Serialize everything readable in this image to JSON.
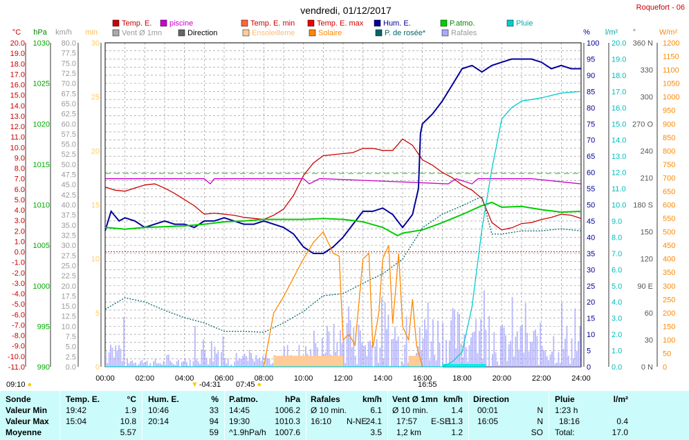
{
  "title": "vendredi, 01/12/2017",
  "station": "Roquefort - 06",
  "legend": [
    {
      "label": "Temp. E.",
      "color": "#cc0000"
    },
    {
      "label": "piscine",
      "color": "#cc00cc"
    },
    {
      "label": "Temp. E. min",
      "color": "#ff6633"
    },
    {
      "label": "Temp. E. max",
      "color": "#ee0000"
    },
    {
      "label": "Hum. E.",
      "color": "#000099"
    },
    {
      "label": "P.atmo.",
      "color": "#00cc00"
    },
    {
      "label": "Pluie",
      "color": "#00cccc"
    },
    {
      "label": "Vent Ø 1mn",
      "color": "#aaaaaa"
    },
    {
      "label": "Direction",
      "color": "#666666"
    },
    {
      "label": "Ensoleilleme",
      "color": "#ffcc99"
    },
    {
      "label": "Solaire",
      "color": "#ff8800"
    },
    {
      "label": "P. de rosée*",
      "color": "#006666"
    },
    {
      "label": "Rafales",
      "color": "#aaaaff"
    }
  ],
  "axes_units": {
    "temp": "°C",
    "hpa": "hPa",
    "wind": "km/h",
    "min": "min",
    "hum": "%",
    "rain": "l/m²",
    "dir": "°",
    "solar": "W/m²"
  },
  "times": [
    "00:00",
    "02:00",
    "04:00",
    "06:00",
    "08:00",
    "10:00",
    "12:00",
    "14:00",
    "16:00",
    "18:00",
    "20:00",
    "22:00",
    "24:00"
  ],
  "sun_marks": {
    "sunrise_label": "07:45",
    "sunset_label": "16:55",
    "moonrise": "09:10",
    "moonset": "-04:31"
  },
  "summary": {
    "labels": {
      "sonde": "Sonde",
      "min": "Valeur Min",
      "max": "Valeur Max",
      "avg": "Moyenne"
    },
    "temp": {
      "h": "Temp. E.",
      "u": "°C",
      "min_t": "19:42",
      "min_v": "1.9",
      "max_t": "15:04",
      "max_v": "10.8",
      "avg": "5.57"
    },
    "hum": {
      "h": "Hum. E.",
      "u": "%",
      "min_t": "10:46",
      "min_v": "33",
      "max_t": "20:14",
      "max_v": "94",
      "avg": "59"
    },
    "patm": {
      "h": "P.atmo.",
      "u": "hPa",
      "min_t": "14:45",
      "min_v": "1006.2",
      "max_t": "19:30",
      "max_v": "1010.3",
      "avg_t": "^1.9hPa/h",
      "avg": "1007.6"
    },
    "gust": {
      "h": "Rafales",
      "u": "km/h",
      "min_t": "Ø 10 min.",
      "min_v": "6.1",
      "max_t": "16:10",
      "max_d": "N-NE",
      "max_v": "24.1",
      "avg": "3.5"
    },
    "wind": {
      "h": "Vent Ø 1mn",
      "u": "km/h",
      "min_t": "Ø 10 min.",
      "min_v": "1.4",
      "max_t": "17:57",
      "max_d": "E-SE",
      "max_v": "11.3",
      "avg_t": "1,2 km",
      "avg": "1.2"
    },
    "dir": {
      "h": "Direction",
      "min_t": "00:01",
      "min_v": "N",
      "max_t": "16:05",
      "max_v": "N",
      "avg": "SO"
    },
    "rain": {
      "h": "Pluie",
      "u": "l/m²",
      "min_t": "1:23 h",
      "max_t": "18:16",
      "max_v": "0.4",
      "avg_t": "Total:",
      "avg": "17.0"
    }
  },
  "chart_data": {
    "type": "line",
    "x_range_h": [
      0,
      24
    ],
    "axes": {
      "temp_c": [
        -11,
        20
      ],
      "pressure_hpa": [
        990,
        1030
      ],
      "wind_kmh": [
        0,
        80
      ],
      "sun_min": [
        0,
        30
      ],
      "humidity_pct": [
        0,
        100
      ],
      "rain_lm2": [
        0,
        20
      ],
      "direction_deg": [
        0,
        360
      ],
      "solar_wm2": [
        0,
        1200
      ]
    },
    "series": [
      {
        "name": "Temp. E.",
        "axis": "temp_c",
        "color": "#cc0000",
        "x": [
          0,
          0.5,
          1,
          1.5,
          2,
          2.5,
          3,
          3.5,
          4,
          4.5,
          5,
          5.5,
          6,
          6.5,
          7,
          7.5,
          8,
          8.5,
          9,
          9.5,
          10,
          10.5,
          11,
          11.5,
          12,
          12.5,
          13,
          13.5,
          14,
          14.5,
          15,
          15.5,
          16,
          16.5,
          17,
          17.5,
          18,
          18.5,
          19,
          19.5,
          20,
          20.5,
          21,
          21.5,
          22,
          22.5,
          23,
          23.5,
          24
        ],
        "y": [
          6.2,
          5.9,
          5.8,
          6.1,
          6.4,
          6.5,
          6.1,
          5.6,
          5.0,
          4.4,
          3.6,
          3.7,
          3.6,
          3.5,
          3.3,
          3.2,
          3.1,
          3.5,
          4.1,
          5.4,
          7.3,
          8.5,
          9.2,
          9.3,
          9.4,
          9.5,
          9.9,
          9.9,
          9.7,
          9.7,
          10.8,
          10.2,
          8.8,
          8.3,
          7.6,
          7.1,
          6.4,
          5.9,
          5.1,
          2.8,
          2.1,
          2.3,
          2.7,
          2.8,
          3.1,
          3.3,
          3.6,
          3.5,
          3.2
        ]
      },
      {
        "name": "piscine",
        "axis": "temp_c",
        "color": "#cc00cc",
        "x": [
          0,
          5,
          5.3,
          5.5,
          10,
          10.3,
          10.8,
          11,
          17.3,
          17.7,
          18.5,
          18.8,
          21.5,
          24
        ],
        "y": [
          7.0,
          7.0,
          6.5,
          7.0,
          7.0,
          6.5,
          7.0,
          7.0,
          6.5,
          7.0,
          6.5,
          7.0,
          7.0,
          6.5
        ]
      },
      {
        "name": "Hum. E.",
        "axis": "humidity_pct",
        "color": "#000099",
        "x": [
          0,
          0.3,
          0.7,
          1,
          1.5,
          2,
          2.5,
          3,
          3.5,
          4,
          4.5,
          5,
          5.5,
          6,
          6.5,
          7,
          7.5,
          8,
          8.5,
          9,
          9.5,
          10,
          10.5,
          11,
          11.5,
          12,
          12.5,
          13,
          13.5,
          14,
          14.5,
          15,
          15.5,
          15.8,
          15.9,
          16,
          16.5,
          17,
          17.5,
          18,
          18.5,
          19,
          19.5,
          20,
          20.5,
          21,
          21.5,
          22,
          22.5,
          23,
          23.5,
          24
        ],
        "y": [
          42,
          48,
          45,
          46,
          45,
          43,
          44,
          45,
          44,
          44,
          43,
          45,
          45,
          46,
          45,
          44,
          44,
          45,
          44,
          43,
          41,
          37,
          35,
          35,
          37,
          40,
          44,
          48,
          48,
          49,
          47,
          43,
          47,
          55,
          72,
          75,
          78,
          82,
          87,
          92,
          93,
          91,
          93,
          94,
          95,
          95,
          95,
          94,
          92,
          93,
          92,
          92
        ]
      },
      {
        "name": "P.atmo.",
        "axis": "pressure_hpa",
        "color": "#00cc00",
        "x": [
          0,
          1,
          2,
          3,
          4,
          5,
          6,
          7,
          8,
          9,
          10,
          11,
          12,
          13,
          14,
          14.75,
          15,
          16,
          17,
          18,
          19,
          19.5,
          20,
          21,
          22,
          23,
          24
        ],
        "y": [
          1007.2,
          1007.0,
          1007.2,
          1007.3,
          1007.4,
          1007.6,
          1007.9,
          1008.0,
          1008.2,
          1008.2,
          1008.2,
          1008.3,
          1008.2,
          1007.9,
          1007.2,
          1006.2,
          1006.5,
          1006.9,
          1007.8,
          1008.8,
          1009.9,
          1010.3,
          1009.7,
          1009.8,
          1009.4,
          1009.1,
          1009.2
        ]
      },
      {
        "name": "P. de rosée*",
        "axis": "temp_c",
        "color": "#006666",
        "x": [
          0,
          1,
          2,
          3,
          4,
          5,
          6,
          7,
          8,
          9,
          10,
          11,
          12,
          13,
          14,
          15,
          16,
          17,
          18,
          19,
          19.5,
          20,
          21,
          22,
          23,
          24
        ],
        "y": [
          -5.5,
          -4.4,
          -4.8,
          -5.6,
          -6.3,
          -6.8,
          -7.6,
          -7.6,
          -7.7,
          -6.8,
          -5.7,
          -4.2,
          -4.0,
          -3.0,
          -2.1,
          -0.7,
          2.3,
          3.6,
          4.4,
          5.3,
          1.7,
          1.7,
          2.0,
          2.0,
          2.2,
          2.0
        ]
      },
      {
        "name": "Solaire",
        "axis": "solar_wm2",
        "color": "#ff8800",
        "x": [
          8,
          8.5,
          9,
          9.5,
          10,
          10.5,
          11,
          11.5,
          11.8,
          12,
          12.3,
          12.6,
          13,
          13.3,
          13.5,
          13.8,
          14,
          14.3,
          14.5,
          14.8,
          15,
          15.3,
          15.5,
          15.7,
          16
        ],
        "y": [
          0,
          200,
          260,
          330,
          400,
          460,
          500,
          420,
          410,
          100,
          120,
          80,
          400,
          420,
          70,
          200,
          400,
          450,
          160,
          420,
          150,
          100,
          250,
          80,
          0
        ]
      },
      {
        "name": "Pluie",
        "axis": "rain_lm2",
        "color": "#00cccc",
        "x": [
          0,
          17,
          17.5,
          18,
          18.5,
          19,
          19.5,
          20,
          20.5,
          21,
          22,
          23,
          24
        ],
        "y": [
          0,
          0,
          0.3,
          0.9,
          3.7,
          8.5,
          12.2,
          15.3,
          16.0,
          16.4,
          16.6,
          16.9,
          17.0
        ]
      }
    ]
  }
}
